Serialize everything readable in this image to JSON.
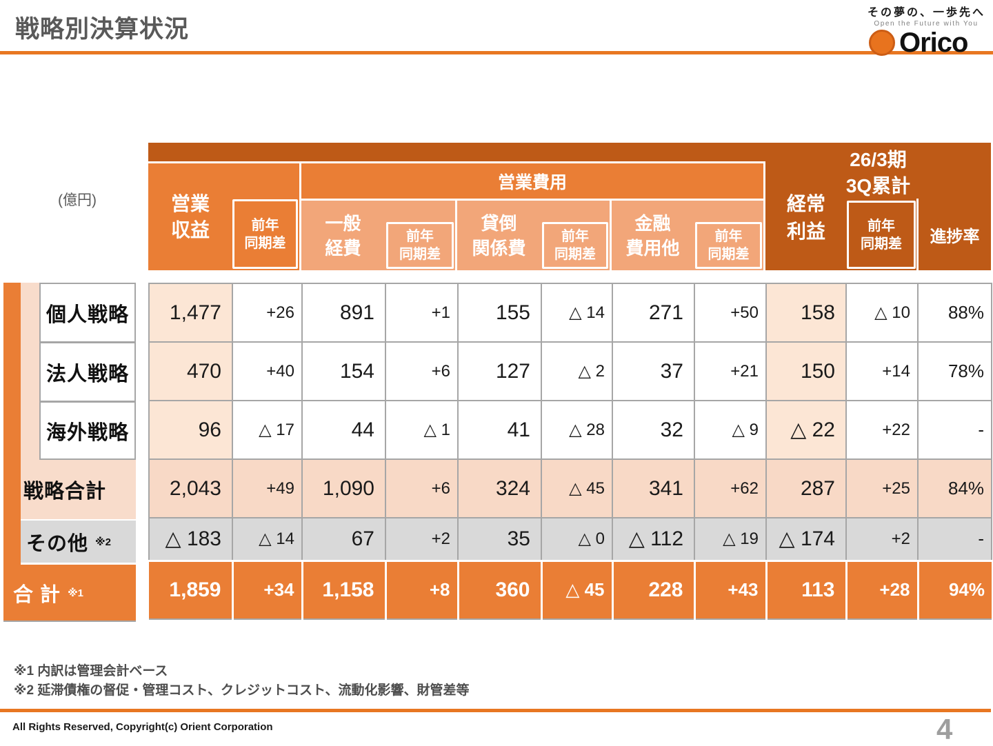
{
  "slide": {
    "title": "戦略別決算状況",
    "unit_label": "(億円)",
    "page_number": "4",
    "copyright": "All Rights Reserved, Copyright(c) Orient Corporation",
    "footnote1": "※1  内訳は管理会計ベース",
    "footnote2": "※2  延滞債権の督促・管理コスト、クレジットコスト、流動化影響、財管差等"
  },
  "logo": {
    "tagline_jp": "その夢の、一歩先へ",
    "tagline_en": "Open the Future with You",
    "brand": "Orico",
    "mark": "orico-circle-icon"
  },
  "colors": {
    "accent_orange": "#EA7E35",
    "dark_orange": "#BE5A17",
    "light_orange": "#F2A679",
    "peach_cell": "#FCE6D5",
    "subtotal_row": "#F8D9C6",
    "other_row_gray": "#D9D9D9",
    "rule_orange": "#E87722",
    "border_gray": "#A6A6A6",
    "title_gray": "#595959"
  },
  "table": {
    "period_header": "26/3期\n3Q累計",
    "headers": {
      "operating_revenue": "営業\n収益",
      "yoy": "前年\n同期差",
      "operating_expenses": "営業費用",
      "general_expenses": "一般\n経費",
      "credit_cost": "貸倒\n関係費",
      "financial_expenses": "金融\n費用他",
      "ordinary_profit": "経常\n利益",
      "progress_rate": "進捗率"
    },
    "rows": [
      {
        "key": "personal",
        "label": "個人戦略",
        "note": "",
        "values": [
          "1,477",
          "+26",
          "891",
          "+1",
          "155",
          "△ 14",
          "271",
          "+50",
          "158",
          "△ 10",
          "88%"
        ]
      },
      {
        "key": "corporate",
        "label": "法人戦略",
        "note": "",
        "values": [
          "470",
          "+40",
          "154",
          "+6",
          "127",
          "△ 2",
          "37",
          "+21",
          "150",
          "+14",
          "78%"
        ]
      },
      {
        "key": "overseas",
        "label": "海外戦略",
        "note": "",
        "values": [
          "96",
          "△ 17",
          "44",
          "△ 1",
          "41",
          "△ 28",
          "32",
          "△ 9",
          "△ 22",
          "+22",
          "-"
        ]
      },
      {
        "key": "strategy-total",
        "label": "戦略合計",
        "note": "",
        "values": [
          "2,043",
          "+49",
          "1,090",
          "+6",
          "324",
          "△ 45",
          "341",
          "+62",
          "287",
          "+25",
          "84%"
        ]
      },
      {
        "key": "other",
        "label": "その他",
        "note": "※2",
        "values": [
          "△ 183",
          "△ 14",
          "67",
          "+2",
          "35",
          "△ 0",
          "△ 112",
          "△ 19",
          "△ 174",
          "+2",
          "-"
        ]
      },
      {
        "key": "grand-total",
        "label": "合 計",
        "note": "※1",
        "values": [
          "1,859",
          "+34",
          "1,158",
          "+8",
          "360",
          "△ 45",
          "228",
          "+43",
          "113",
          "+28",
          "94%"
        ]
      }
    ]
  }
}
